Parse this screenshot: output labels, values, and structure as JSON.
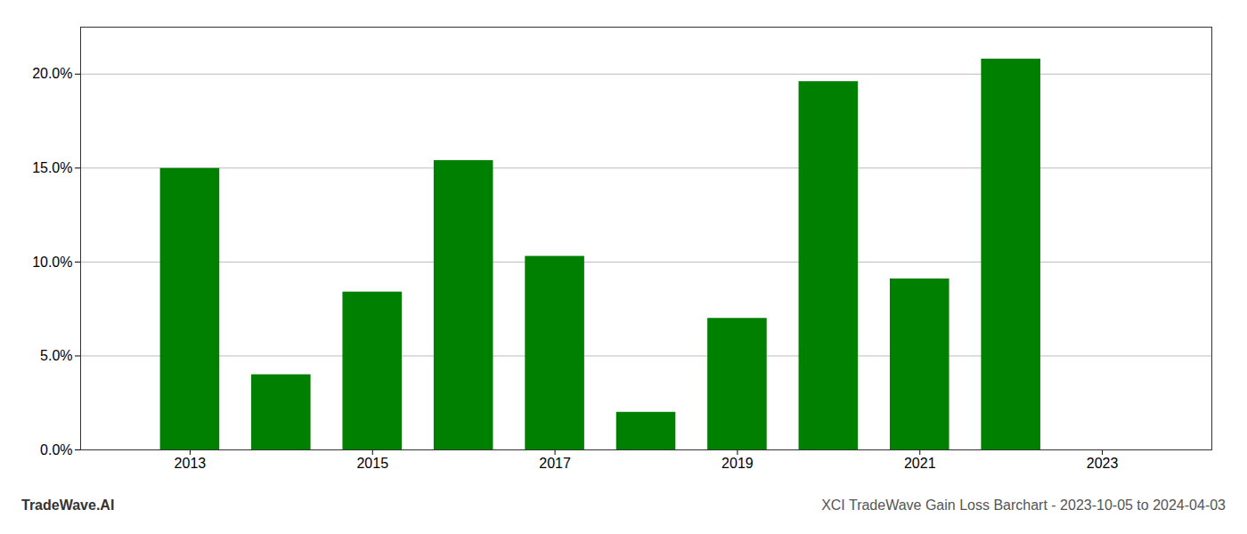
{
  "chart_data": {
    "type": "bar",
    "x": [
      2013,
      2014,
      2015,
      2016,
      2017,
      2018,
      2019,
      2020,
      2021,
      2022
    ],
    "values": [
      0.1498,
      0.04,
      0.084,
      0.154,
      0.103,
      0.02,
      0.07,
      0.196,
      0.091,
      0.208
    ],
    "color": "#008000",
    "xlim": [
      2011.8,
      2024.2
    ],
    "xticks": [
      2013,
      2015,
      2017,
      2019,
      2021,
      2023
    ],
    "ylim": [
      0,
      0.225
    ],
    "yticks": [
      {
        "value": 0.0,
        "label": "0.0%"
      },
      {
        "value": 0.05,
        "label": "5.0%"
      },
      {
        "value": 0.1,
        "label": "10.0%"
      },
      {
        "value": 0.15,
        "label": "15.0%"
      },
      {
        "value": 0.2,
        "label": "20.0%"
      }
    ],
    "grid": true,
    "annotations": [
      "TradeWave.AI",
      "XCI TradeWave Gain Loss Barchart - 2023-10-05 to 2024-04-03"
    ]
  }
}
